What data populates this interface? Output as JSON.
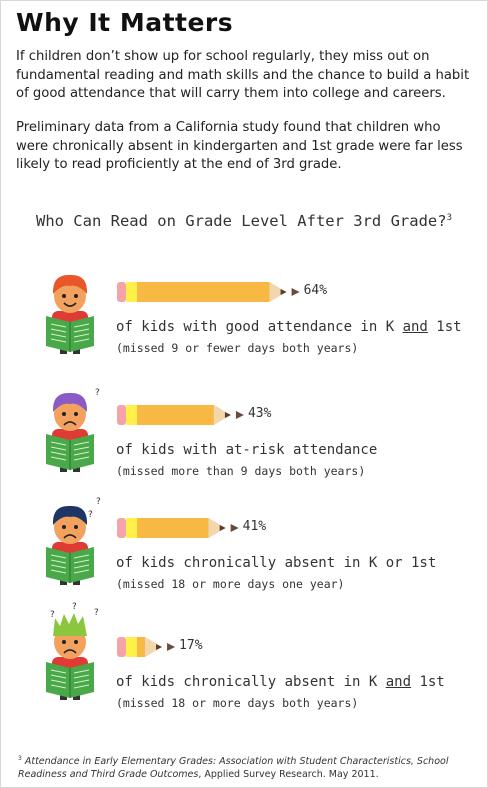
{
  "title": "Why It Matters",
  "paragraphs": {
    "p1": "If children don’t show up for school regularly, they miss out on fundamental reading and math skills and the chance to build a habit of good attendance that will carry them into college and careers.",
    "p2": "Preliminary data from a California study found that children who were chronically absent in kindergarten and 1st grade were far less likely to read proficiently at the end of 3rd grade."
  },
  "chart_data": {
    "type": "bar",
    "title": "Who Can Read on Grade Level After 3rd Grade?",
    "title_sup": "3",
    "unit": "%",
    "xlim": [
      0,
      100
    ],
    "categories": [
      {
        "pre": "of kids with good attendance in K ",
        "em": "and",
        "post": " 1st",
        "sub": "(missed 9 or fewer days both years)"
      },
      {
        "pre": "of kids with at-risk attendance",
        "em": "",
        "post": "",
        "sub": "(missed more than 9 days both years)"
      },
      {
        "pre": "of kids chronically absent in K or 1st",
        "em": "",
        "post": "",
        "sub": "(missed 18 or more days one year)"
      },
      {
        "pre": "of kids chronically absent in K ",
        "em": "and",
        "post": " 1st",
        "sub": "(missed 18 or more days both years)"
      }
    ],
    "values": [
      64,
      43,
      41,
      17
    ],
    "labels": [
      "64%",
      "43%",
      "41%",
      "17%"
    ]
  },
  "kids": [
    {
      "icon": "happy-kid-icon",
      "hair": "#e8562a",
      "marks": ""
    },
    {
      "icon": "worried-kid-icon",
      "hair": "#8a5bc7",
      "marks": "?"
    },
    {
      "icon": "worried-kid-icon",
      "hair": "#1f3566",
      "marks": "? ?"
    },
    {
      "icon": "sad-kid-icon",
      "hair": "#8cc63f",
      "marks": "? ? ?"
    }
  ],
  "colors": {
    "pencil": "#f7b844",
    "eraser": "#f4a3a8",
    "band": "#fff04a",
    "wood": "#f2d7ad",
    "lead": "#5a3a2a",
    "book": "#49a84a",
    "shirt": "#e03a35",
    "skin": "#f2a15e"
  },
  "footnote": {
    "sup": "3",
    "italic": "Attendance in Early Elementary Grades: Association with Student Characteristics, School Readiness and Third Grade Outcomes",
    "rest": ", Applied Survey Research. May 2011."
  }
}
